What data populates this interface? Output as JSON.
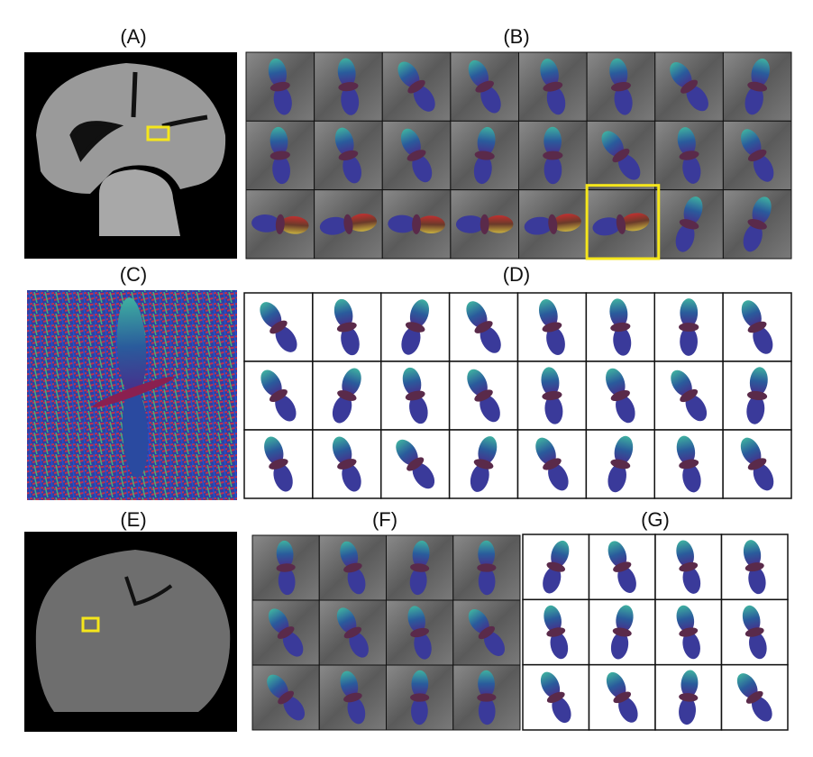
{
  "panels": [
    {
      "label": "(A)"
    },
    {
      "label": "(B)"
    },
    {
      "label": "(C)"
    },
    {
      "label": "(D)"
    },
    {
      "label": "(E)"
    },
    {
      "label": "(F)"
    },
    {
      "label": "(G)"
    }
  ]
}
